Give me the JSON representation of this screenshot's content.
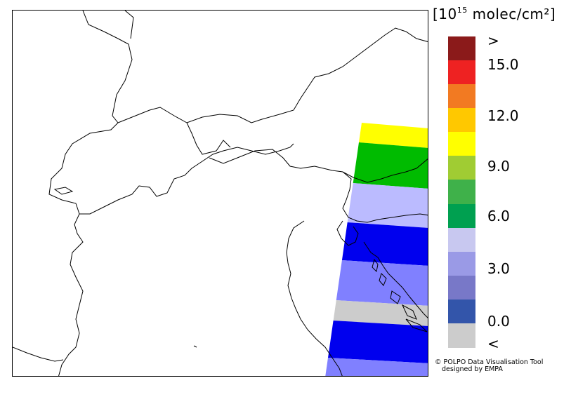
{
  "legend": {
    "unit_prefix": "[10",
    "unit_exponent": "15",
    "unit_suffix": " molec/cm²]",
    "boxes": [
      {
        "color": "#8b1a1a"
      },
      {
        "color": "#ee2222"
      },
      {
        "color": "#f27a22"
      },
      {
        "color": "#ffc800"
      },
      {
        "color": "#ffff00"
      },
      {
        "color": "#a0cc33"
      },
      {
        "color": "#3fb14a"
      },
      {
        "color": "#00a050"
      },
      {
        "color": "#c8c8f0"
      },
      {
        "color": "#9a9ae6"
      },
      {
        "color": "#7878c8"
      },
      {
        "color": "#3355aa"
      },
      {
        "color": "#cccccc"
      }
    ],
    "labels": [
      ">",
      "15.0",
      "12.0",
      "9.0",
      "6.0",
      "3.0",
      "0.0",
      "<"
    ]
  },
  "swath_bands": [
    {
      "color": "#ffff00"
    },
    {
      "color": "#00bb00"
    },
    {
      "color": "#bbbbff"
    },
    {
      "color": "#0000ee"
    },
    {
      "color": "#8080ff"
    },
    {
      "color": "#cccccc"
    },
    {
      "color": "#0000ee"
    },
    {
      "color": "#8080ff"
    }
  ],
  "credit": {
    "line1": "© POLPO Data Visualisation Tool",
    "line2": "designed by EMPA"
  }
}
